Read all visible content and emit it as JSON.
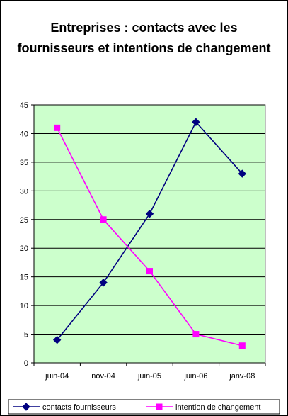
{
  "chart_data": {
    "type": "line",
    "title": "Entreprises : contacts avec les fournisseurs et intentions de changement",
    "xlabel": "",
    "ylabel": "",
    "categories": [
      "juin-04",
      "nov-04",
      "juin-05",
      "juin-06",
      "janv-08"
    ],
    "ylim": [
      0,
      45
    ],
    "yticks": [
      0,
      5,
      10,
      15,
      20,
      25,
      30,
      35,
      40,
      45
    ],
    "grid": true,
    "legend_position": "bottom",
    "plot_background": "#ccffcc",
    "series": [
      {
        "name": "contacts fournisseurs",
        "values": [
          4,
          14,
          26,
          42,
          33
        ],
        "color": "#000080",
        "marker": "diamond"
      },
      {
        "name": "intention de changement",
        "values": [
          41,
          25,
          16,
          5,
          3
        ],
        "color": "#ff00ff",
        "marker": "square"
      }
    ]
  }
}
